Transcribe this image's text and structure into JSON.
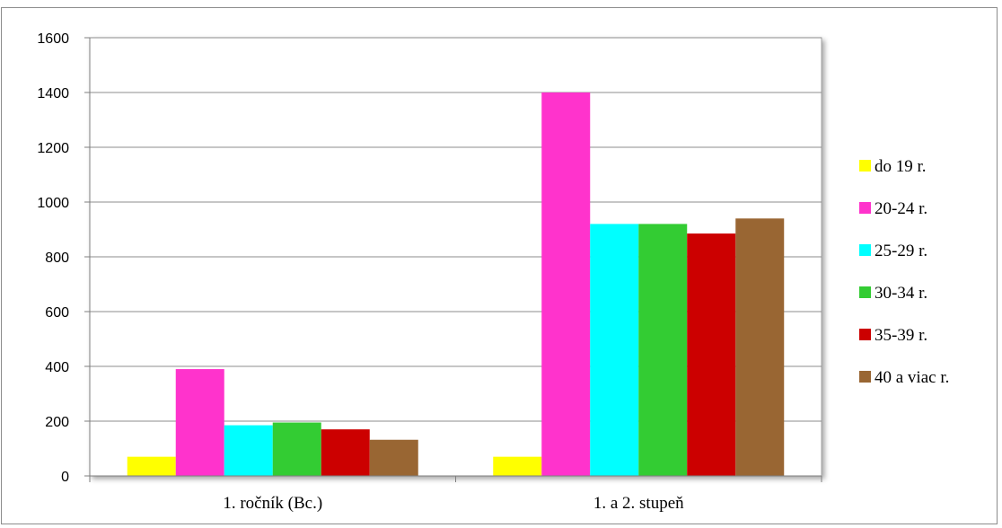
{
  "chart_data": {
    "type": "bar",
    "categories": [
      "1. ročník (Bc.)",
      "1. a 2. stupeň"
    ],
    "ylim": [
      0,
      1600
    ],
    "yticks": [
      0,
      200,
      400,
      600,
      800,
      1000,
      1200,
      1400,
      1600
    ],
    "grid": true,
    "legend_position": "right",
    "series": [
      {
        "name": "do 19 r.",
        "color": "#ffff00",
        "values": [
          70,
          70
        ]
      },
      {
        "name": "20-24 r.",
        "color": "#ff33cc",
        "values": [
          390,
          1400
        ]
      },
      {
        "name": "25-29 r.",
        "color": "#00ffff",
        "values": [
          185,
          920
        ]
      },
      {
        "name": "30-34 r.",
        "color": "#33cc33",
        "values": [
          195,
          920
        ]
      },
      {
        "name": "35-39 r.",
        "color": "#cc0000",
        "values": [
          170,
          885
        ]
      },
      {
        "name": "40 a viac r.",
        "color": "#996633",
        "values": [
          132,
          940
        ]
      }
    ]
  }
}
